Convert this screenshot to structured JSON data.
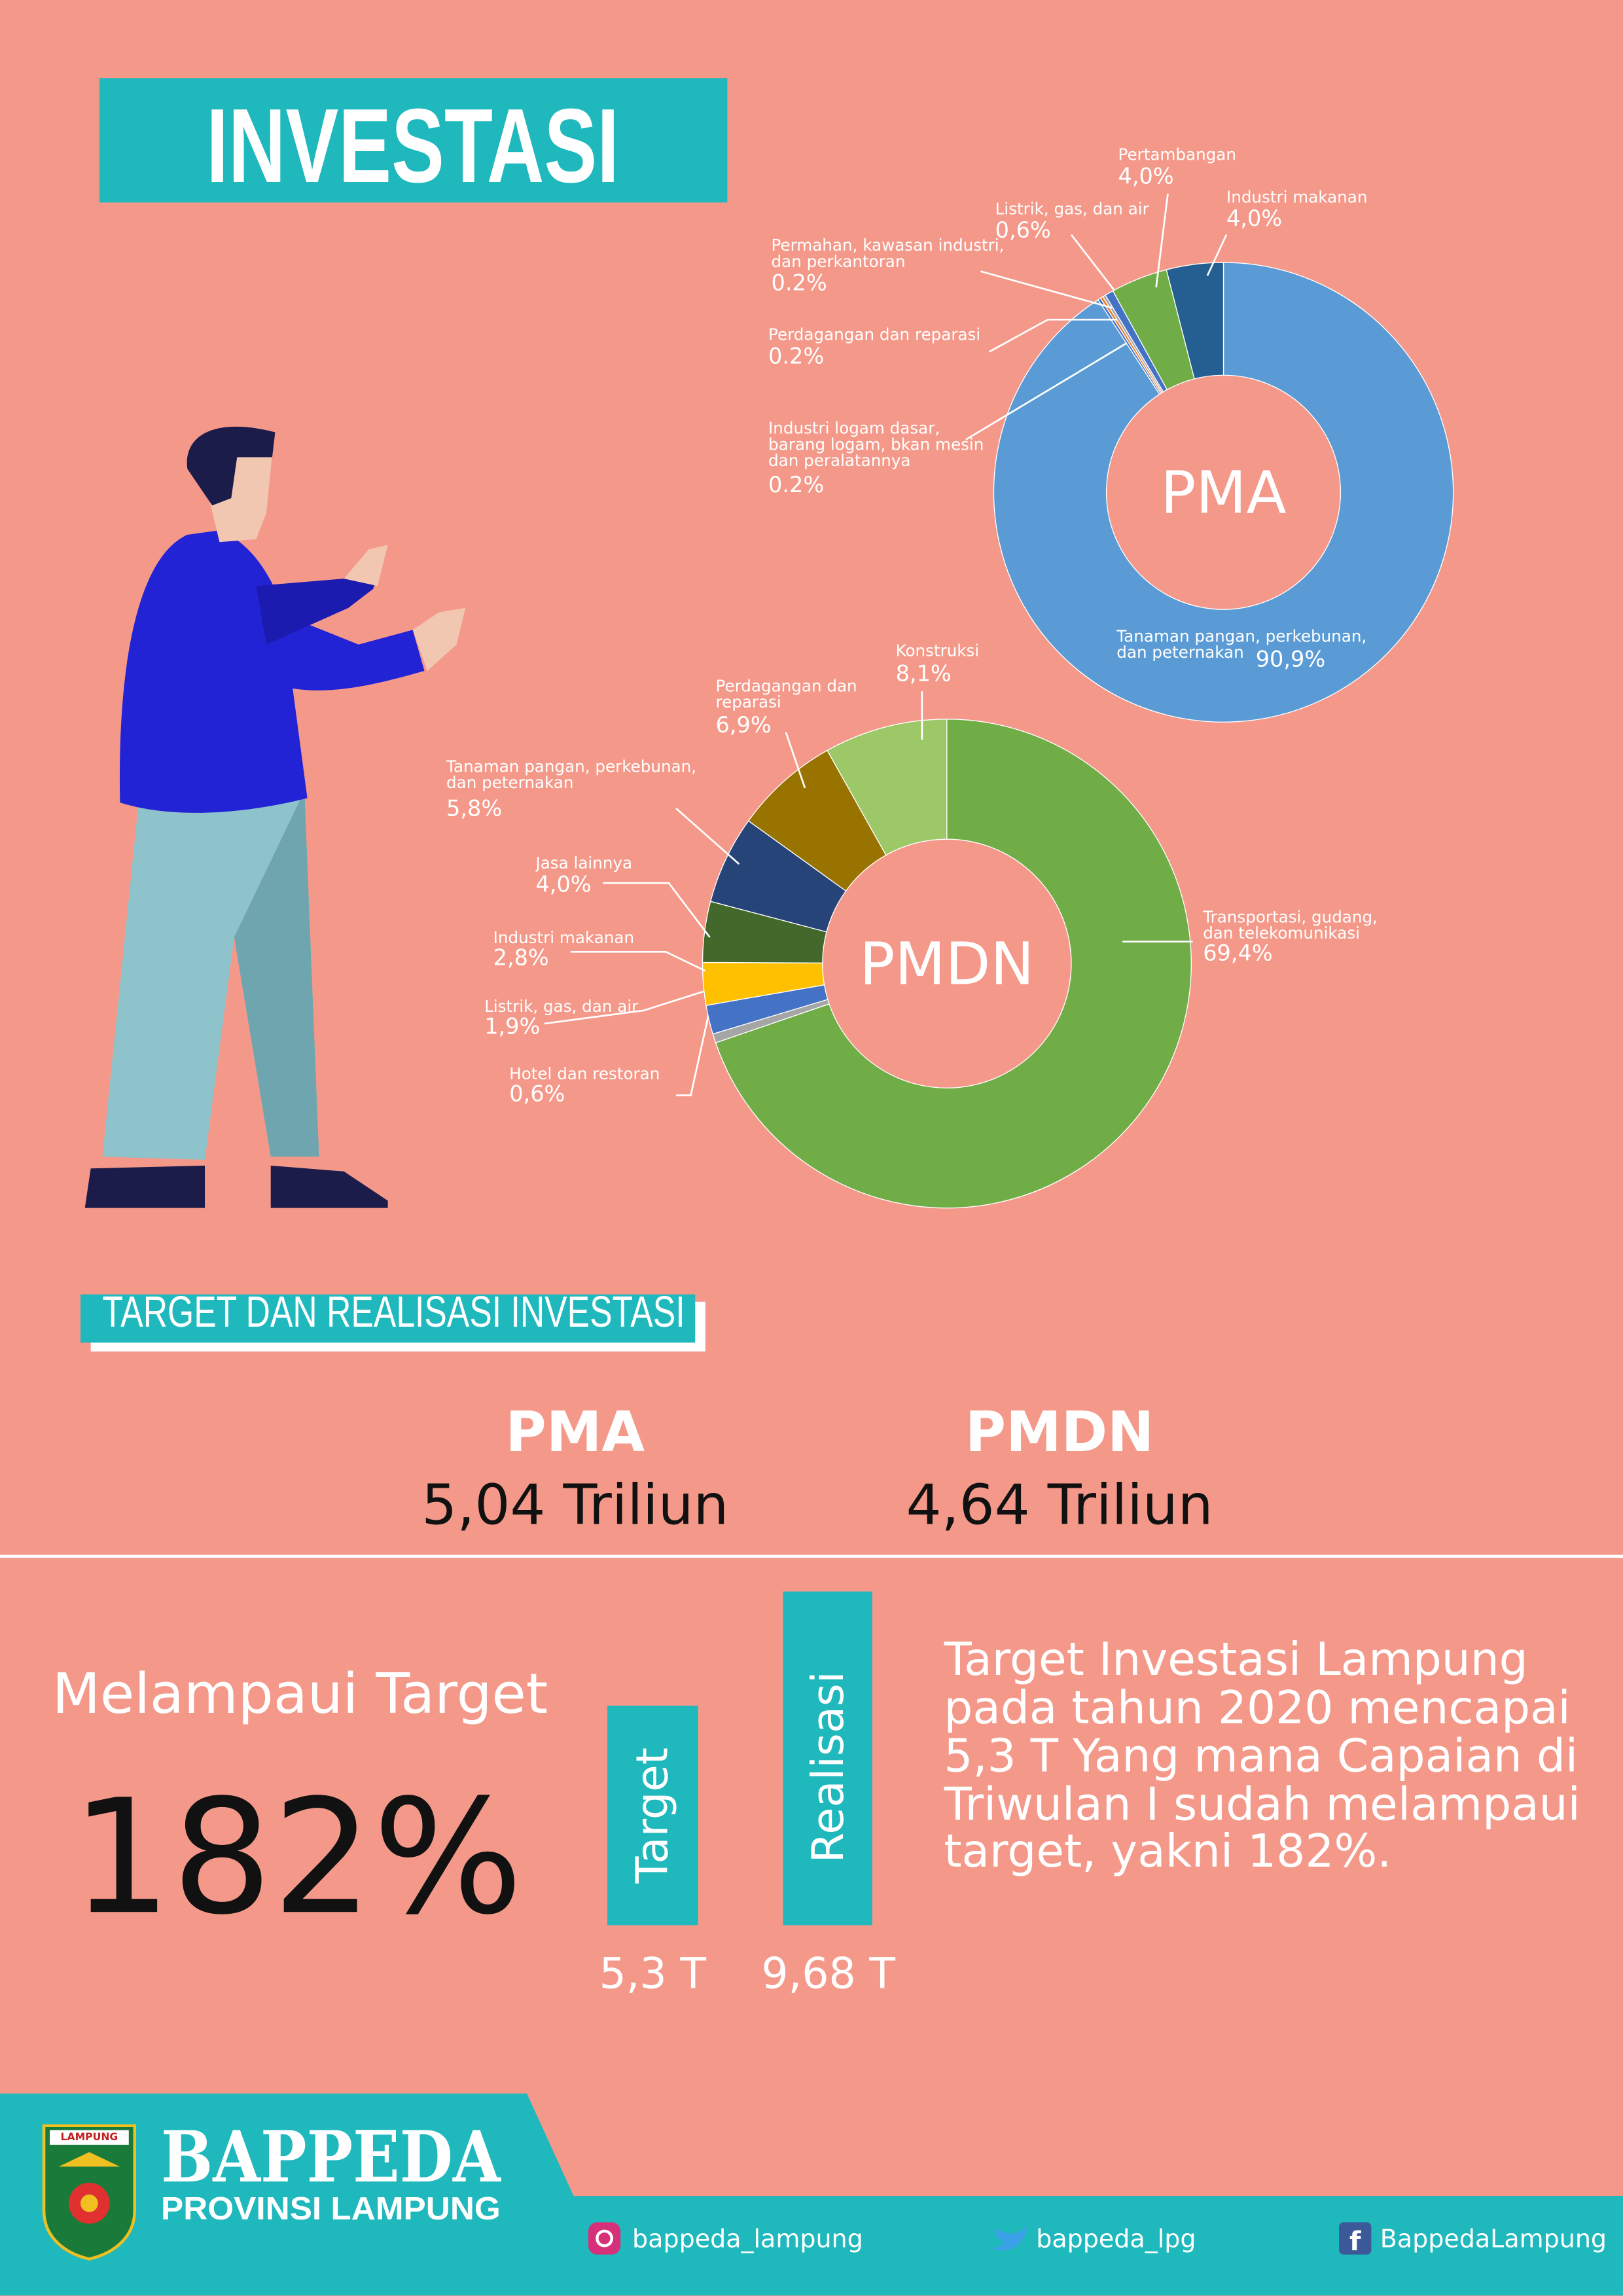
{
  "title": "INVESTASI",
  "chart_data": [
    {
      "type": "pie",
      "title": "PMA",
      "categories": [
        "Tanaman pangan, perkebunan, dan peternakan",
        "Industri logam dasar, barang logam, bkan mesin dan peralatannya",
        "Perdagangan dan reparasi",
        "Permahan, kawasan industri, dan perkantoran",
        "Listrik, gas, dan air",
        "Pertambangan",
        "Industri makanan"
      ],
      "values": [
        90.9,
        0.2,
        0.2,
        0.2,
        0.6,
        4.0,
        4.0
      ],
      "value_labels": [
        "90,9%",
        "0.2%",
        "0.2%",
        "0.2%",
        "0,6%",
        "4,0%",
        "4,0%"
      ],
      "colors": [
        "#5b9bd5",
        "#4472c4",
        "#ed7d31",
        "#a5a5a5",
        "#4472c4",
        "#70ad47",
        "#255e91"
      ]
    },
    {
      "type": "pie",
      "title": "PMDN",
      "categories": [
        "Transportasi, gudang, dan telekomunikasi",
        "Hotel dan restoran",
        "Listrik, gas, dan air",
        "Industri makanan",
        "Jasa lainnya",
        "Tanaman pangan, perkebunan, dan peternakan",
        "Perdagangan dan reparasi",
        "Konstruksi"
      ],
      "values": [
        69.4,
        0.6,
        1.9,
        2.8,
        4.0,
        5.8,
        6.9,
        8.1
      ],
      "value_labels": [
        "69,4%",
        "0,6%",
        "1,9%",
        "2,8%",
        "4,0%",
        "5,8%",
        "6,9%",
        "8,1%"
      ],
      "colors": [
        "#70ad47",
        "#a5a5a5",
        "#4472c4",
        "#ffc000",
        "#43682b",
        "#264478",
        "#997300",
        "#9dc868"
      ]
    }
  ],
  "section_title": "TARGET DAN REALISASI INVESTASI",
  "totals": [
    {
      "name": "PMA",
      "value": "5,04 Triliun"
    },
    {
      "name": "PMDN",
      "value": "4,64 Triliun"
    }
  ],
  "achievement": {
    "label": "Melampaui Target",
    "value": "182%"
  },
  "comparison": [
    {
      "name": "Target",
      "value": "5,3 T"
    },
    {
      "name": "Realisasi",
      "value": "9,68 T"
    }
  ],
  "description": "Target Investasi Lampung pada tahun 2020 mencapai 5,3 T Yang mana Capaian di Triwulan I sudah melampaui target, yakni 182%.",
  "footer": {
    "logo_text": "LAMPUNG",
    "org": "BAPPEDA",
    "region": "PROVINSI LAMPUNG",
    "instagram": "bappeda_lampung",
    "twitter": "bappeda_lpg",
    "facebook": "BappedaLampung"
  }
}
